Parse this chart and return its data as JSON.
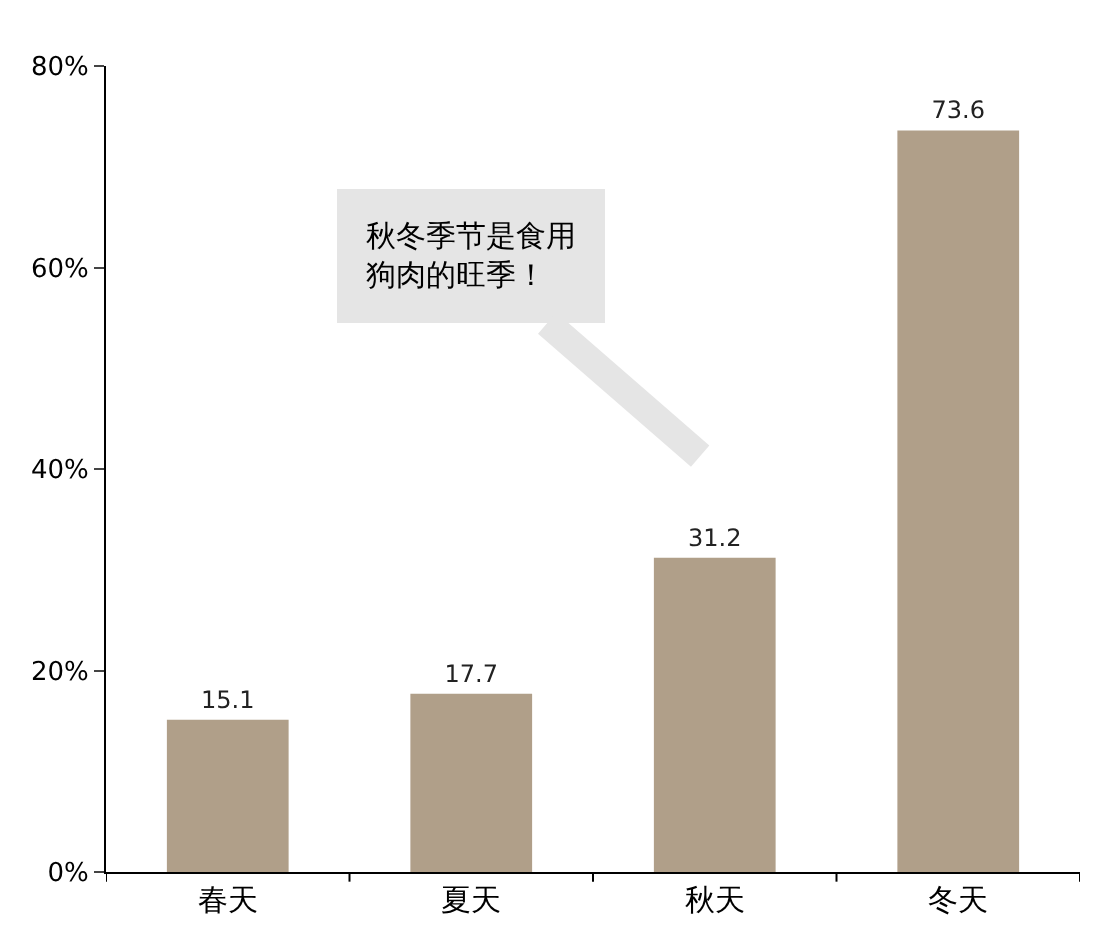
{
  "chart_data": {
    "type": "bar",
    "categories": [
      "春天",
      "夏天",
      "秋天",
      "冬天"
    ],
    "values": [
      15.1,
      17.7,
      31.2,
      73.6
    ],
    "color": "#b09f89",
    "ylim": [
      0,
      80
    ],
    "yticks": [
      {
        "value": 0,
        "label": "0%"
      },
      {
        "value": 20,
        "label": "20%"
      },
      {
        "value": 40,
        "label": "40%"
      },
      {
        "value": 60,
        "label": "60%"
      },
      {
        "value": 80,
        "label": "80%"
      }
    ],
    "data_labels": true,
    "annotations": [
      "秋冬季节是食用狗肉的旺季！"
    ]
  }
}
